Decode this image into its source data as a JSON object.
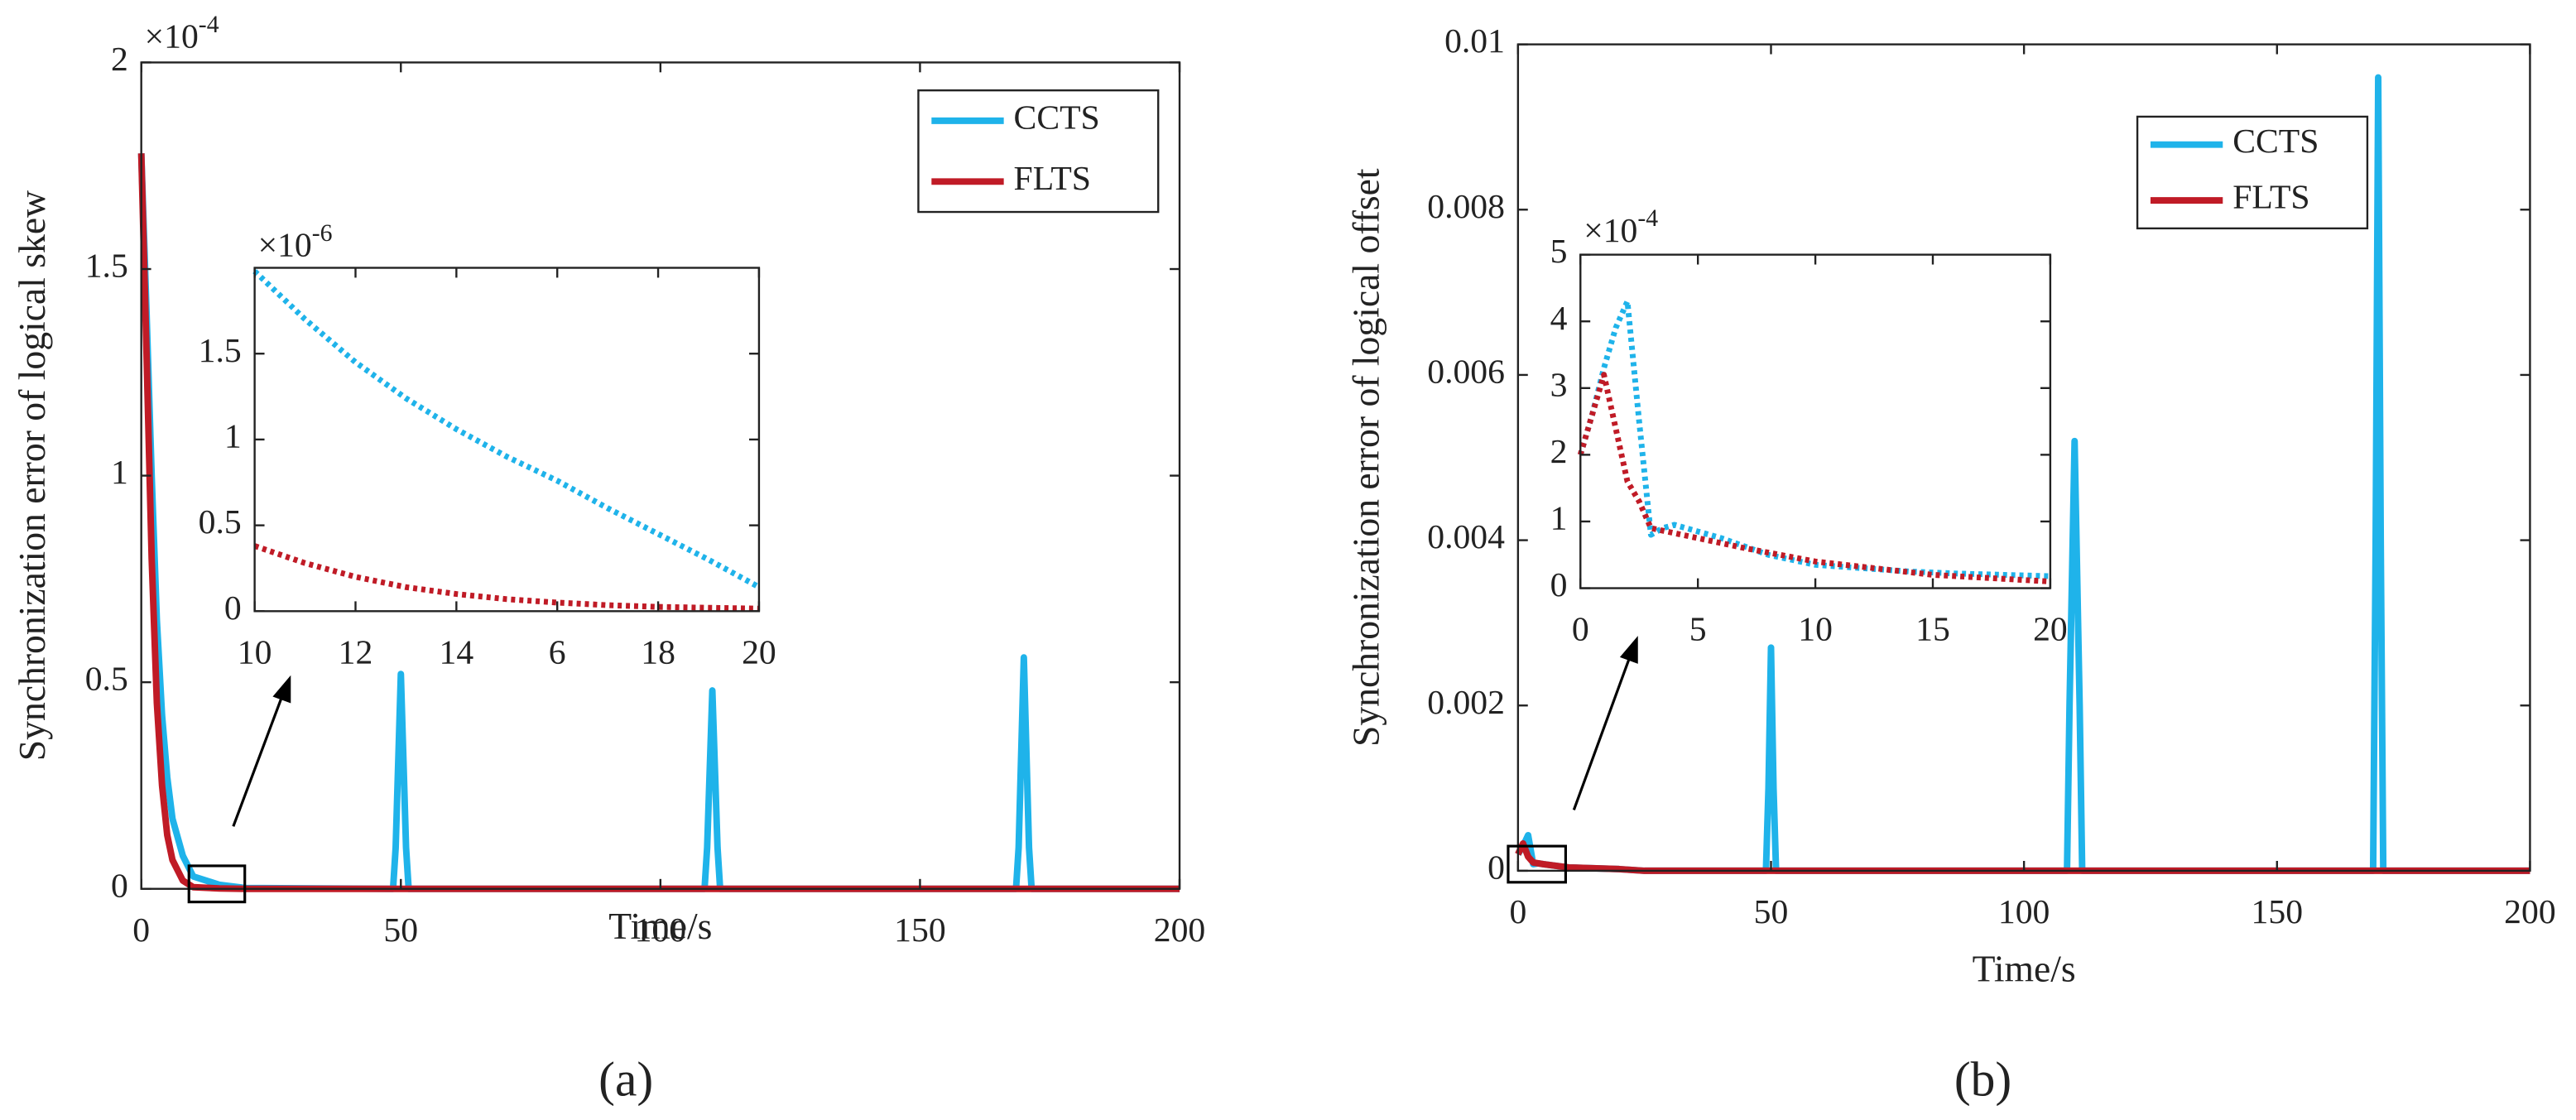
{
  "chart_data": [
    {
      "type": "line",
      "xlabel": "Time/s",
      "ylabel": "Synchronization error of logical skew",
      "y_multiplier": {
        "base": "×10",
        "exponent": "-4"
      },
      "panel_label": "(a)",
      "xlim": [
        0,
        200
      ],
      "xticks": [
        0,
        50,
        100,
        150,
        200
      ],
      "ylim": [
        0,
        2
      ],
      "yticks": [
        0,
        0.5,
        1,
        1.5,
        2
      ],
      "legend": "northeast",
      "line_style": "solid",
      "series": [
        {
          "name": "CCTS",
          "color": "#1fb3ea",
          "x": [
            0,
            1,
            2,
            3,
            4,
            5,
            6,
            8,
            10,
            15,
            20,
            48.5,
            49,
            50,
            51,
            51.5,
            108.5,
            109,
            110,
            111,
            111.5,
            168.5,
            169,
            170,
            171,
            171.5,
            200
          ],
          "values": [
            1.78,
            1.4,
            1.0,
            0.65,
            0.42,
            0.27,
            0.17,
            0.08,
            0.03,
            0.01,
            0.002,
            0,
            0.1,
            0.52,
            0.1,
            0,
            0,
            0.1,
            0.48,
            0.1,
            0,
            0,
            0.1,
            0.56,
            0.1,
            0,
            0
          ]
        },
        {
          "name": "FLTS",
          "color": "#c01b26",
          "x": [
            0,
            1,
            2,
            3,
            4,
            5,
            6,
            8,
            10,
            15,
            20,
            200
          ],
          "values": [
            1.78,
            1.3,
            0.8,
            0.45,
            0.25,
            0.13,
            0.07,
            0.02,
            0.004,
            0.001,
            0,
            0
          ]
        }
      ]
    },
    {
      "type": "line",
      "y_multiplier": {
        "base": "×10",
        "exponent": "-6"
      },
      "xlim": [
        10,
        20
      ],
      "xticks": [
        10,
        12,
        14,
        {
          "value": 16,
          "label": "6"
        },
        18,
        20
      ],
      "ylim": [
        0,
        2
      ],
      "yticks": [
        0,
        0.5,
        1,
        1.5
      ],
      "line_style": "dotted",
      "series": [
        {
          "name": "CCTS",
          "color": "#1fb3ea",
          "x": [
            10,
            11,
            12,
            13,
            14,
            15,
            16,
            17,
            18,
            19,
            20
          ],
          "values": [
            1.98,
            1.7,
            1.45,
            1.24,
            1.06,
            0.9,
            0.76,
            0.6,
            0.45,
            0.3,
            0.14
          ]
        },
        {
          "name": "FLTS",
          "color": "#c01b26",
          "x": [
            10,
            11,
            12,
            13,
            14,
            15,
            16,
            17,
            18,
            19,
            20
          ],
          "values": [
            0.38,
            0.28,
            0.2,
            0.14,
            0.1,
            0.07,
            0.05,
            0.035,
            0.025,
            0.02,
            0.015
          ]
        }
      ]
    },
    {
      "type": "line",
      "xlabel": "Time/s",
      "ylabel": "Synchronization error of logical offset",
      "panel_label": "(b)",
      "xlim": [
        0,
        200
      ],
      "xticks": [
        0,
        50,
        100,
        150,
        200
      ],
      "ylim": [
        0,
        0.01
      ],
      "yticks": [
        0,
        0.002,
        0.004,
        0.006,
        0.008,
        0.01
      ],
      "legend": "northeast",
      "line_style": "solid",
      "series": [
        {
          "name": "CCTS",
          "color": "#1fb3ea",
          "x": [
            0,
            1,
            2,
            3,
            4,
            5,
            10,
            20,
            25,
            49,
            49.5,
            50,
            50.5,
            51,
            108.5,
            109,
            110,
            111,
            111.5,
            169,
            169.5,
            170,
            170.5,
            171,
            200
          ],
          "values": [
            0.0002,
            0.0003,
            0.00043,
            8e-05,
            9e-05,
            8e-05,
            4e-05,
            2e-05,
            0,
            0,
            0.001,
            0.0027,
            0.001,
            0,
            0,
            0.002,
            0.0052,
            0.002,
            0,
            0,
            0.004,
            0.0096,
            0.004,
            0,
            0
          ]
        },
        {
          "name": "FLTS",
          "color": "#c01b26",
          "x": [
            0,
            1,
            2,
            3,
            5,
            10,
            20,
            25,
            200
          ],
          "values": [
            0.0002,
            0.00033,
            0.00017,
            0.0001,
            8e-05,
            4e-05,
            2e-05,
            0,
            0
          ]
        }
      ]
    },
    {
      "type": "line",
      "y_multiplier": {
        "base": "×10",
        "exponent": "-4"
      },
      "xlim": [
        0,
        20
      ],
      "xticks": [
        0,
        5,
        10,
        15,
        20
      ],
      "ylim": [
        0,
        5
      ],
      "yticks": [
        0,
        1,
        2,
        3,
        4,
        5
      ],
      "line_style": "dotted",
      "series": [
        {
          "name": "CCTS",
          "color": "#1fb3ea",
          "x": [
            0,
            0.5,
            1,
            1.5,
            2,
            2.5,
            3,
            3.5,
            4,
            5,
            6,
            8,
            10,
            12,
            14,
            16,
            18,
            20
          ],
          "values": [
            2.0,
            2.6,
            3.3,
            3.9,
            4.3,
            2.5,
            0.8,
            0.9,
            0.95,
            0.85,
            0.75,
            0.5,
            0.35,
            0.3,
            0.25,
            0.22,
            0.2,
            0.18
          ]
        },
        {
          "name": "FLTS",
          "color": "#c01b26",
          "x": [
            0,
            1,
            2,
            2.5,
            3,
            5,
            7,
            10,
            15,
            20
          ],
          "values": [
            2.0,
            3.2,
            1.6,
            1.3,
            0.9,
            0.75,
            0.6,
            0.4,
            0.2,
            0.1
          ]
        }
      ]
    }
  ]
}
